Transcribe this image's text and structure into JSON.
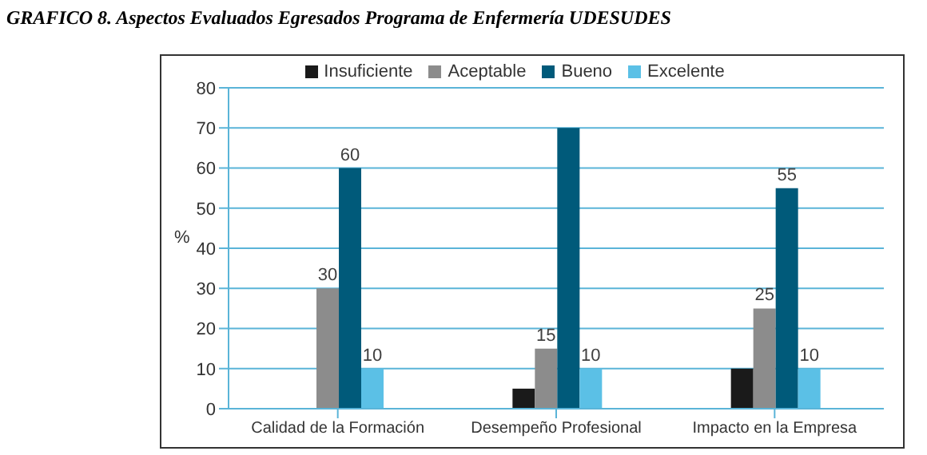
{
  "chart_data": {
    "type": "bar",
    "title": "GRAFICO 8. Aspectos Evaluados Egresados Programa de Enfermería UDESUDES",
    "ylabel": "%",
    "categories": [
      "Calidad de la Formación",
      "Desempeño Profesional",
      "Impacto en la Empresa"
    ],
    "series": [
      {
        "name": "Insuficiente",
        "color": "#1a1a1a",
        "values": [
          0,
          5,
          10
        ],
        "value_labels": [
          null,
          null,
          null
        ]
      },
      {
        "name": "Aceptable",
        "color": "#8c8c8c",
        "values": [
          30,
          15,
          25
        ],
        "value_labels": [
          "30",
          "15",
          "25"
        ]
      },
      {
        "name": "Bueno",
        "color": "#005a7a",
        "values": [
          60,
          70,
          55
        ],
        "value_labels": [
          "60",
          null,
          "55"
        ]
      },
      {
        "name": "Excelente",
        "color": "#5bc0e6",
        "values": [
          10,
          10,
          10
        ],
        "value_labels": [
          "10",
          "10",
          "10"
        ]
      }
    ],
    "ylim": [
      0,
      80
    ],
    "yticks": [
      0,
      10,
      20,
      30,
      40,
      50,
      60,
      70,
      80
    ],
    "grid": "y",
    "legend": "top"
  }
}
